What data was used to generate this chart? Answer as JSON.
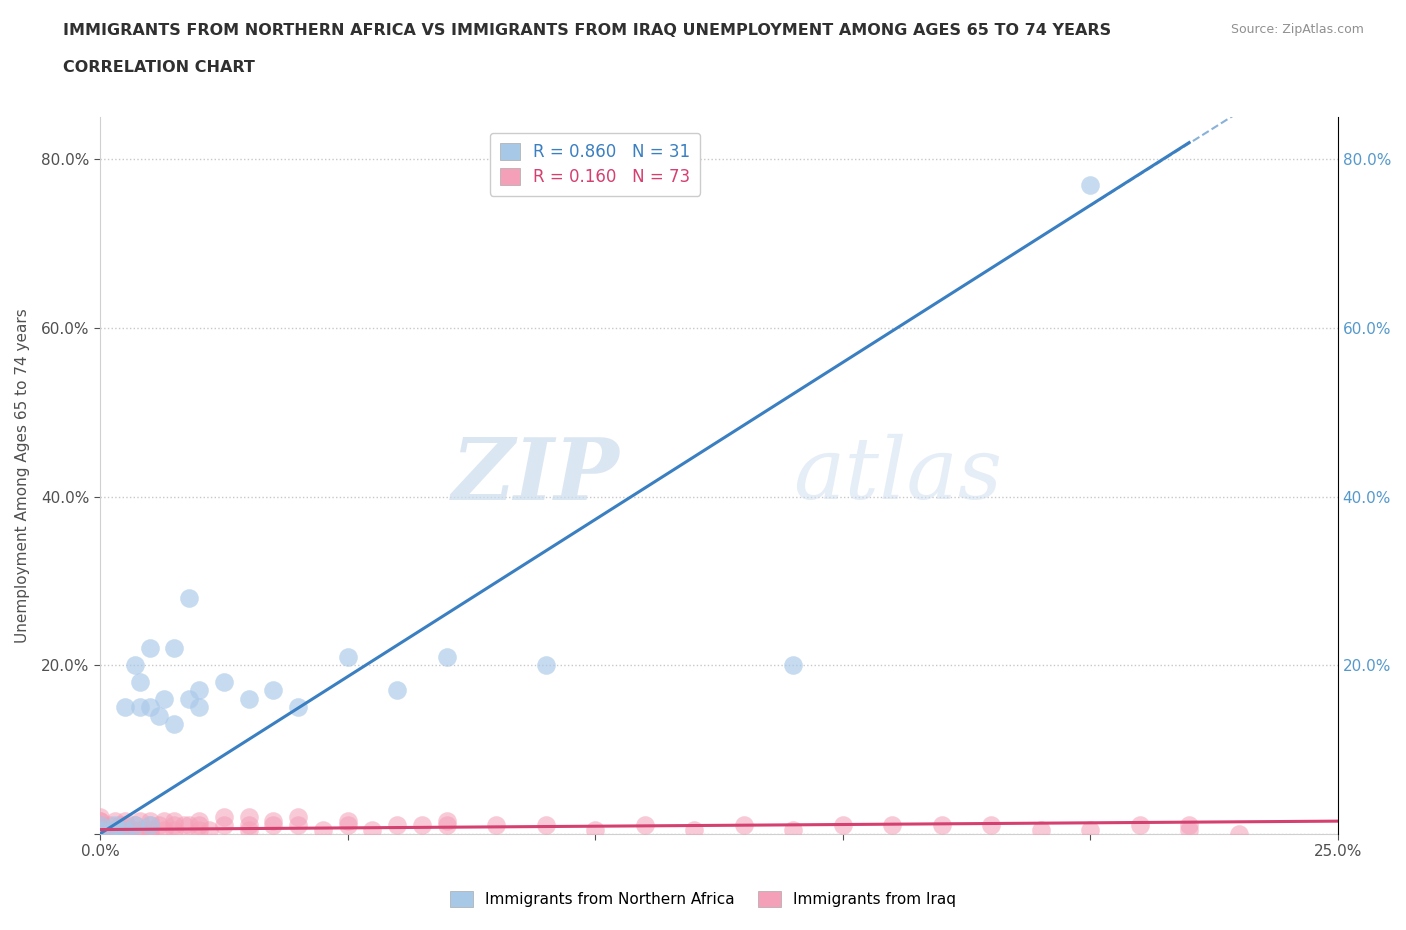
{
  "title_line1": "IMMIGRANTS FROM NORTHERN AFRICA VS IMMIGRANTS FROM IRAQ UNEMPLOYMENT AMONG AGES 65 TO 74 YEARS",
  "title_line2": "CORRELATION CHART",
  "source": "Source: ZipAtlas.com",
  "ylabel": "Unemployment Among Ages 65 to 74 years",
  "xlim": [
    0.0,
    0.25
  ],
  "ylim": [
    0.0,
    0.85
  ],
  "xticks": [
    0.0,
    0.05,
    0.1,
    0.15,
    0.2,
    0.25
  ],
  "yticks": [
    0.0,
    0.2,
    0.4,
    0.6,
    0.8
  ],
  "blue_R": 0.86,
  "blue_N": 31,
  "pink_R": 0.16,
  "pink_N": 73,
  "blue_color": "#a8c8e8",
  "pink_color": "#f4a0b8",
  "blue_line_color": "#3a7fc1",
  "pink_line_color": "#d44070",
  "watermark_zip": "ZIP",
  "watermark_atlas": "atlas",
  "blue_scatter_x": [
    0.0,
    0.0,
    0.003,
    0.003,
    0.005,
    0.005,
    0.007,
    0.007,
    0.008,
    0.008,
    0.01,
    0.01,
    0.01,
    0.012,
    0.013,
    0.015,
    0.015,
    0.018,
    0.018,
    0.02,
    0.02,
    0.025,
    0.03,
    0.035,
    0.04,
    0.05,
    0.06,
    0.07,
    0.09,
    0.14,
    0.2
  ],
  "blue_scatter_y": [
    0.005,
    0.01,
    0.005,
    0.01,
    0.005,
    0.15,
    0.01,
    0.2,
    0.15,
    0.18,
    0.01,
    0.15,
    0.22,
    0.14,
    0.16,
    0.13,
    0.22,
    0.16,
    0.28,
    0.17,
    0.15,
    0.18,
    0.16,
    0.17,
    0.15,
    0.21,
    0.17,
    0.21,
    0.2,
    0.2,
    0.77
  ],
  "pink_scatter_x": [
    0.0,
    0.0,
    0.0,
    0.0,
    0.0,
    0.0,
    0.0,
    0.0,
    0.0,
    0.0,
    0.002,
    0.002,
    0.003,
    0.003,
    0.004,
    0.005,
    0.005,
    0.005,
    0.005,
    0.007,
    0.007,
    0.008,
    0.008,
    0.01,
    0.01,
    0.01,
    0.01,
    0.012,
    0.013,
    0.013,
    0.015,
    0.015,
    0.015,
    0.017,
    0.018,
    0.02,
    0.02,
    0.02,
    0.022,
    0.025,
    0.025,
    0.03,
    0.03,
    0.03,
    0.035,
    0.035,
    0.04,
    0.04,
    0.045,
    0.05,
    0.05,
    0.055,
    0.06,
    0.065,
    0.07,
    0.07,
    0.08,
    0.09,
    0.1,
    0.11,
    0.12,
    0.13,
    0.14,
    0.15,
    0.16,
    0.17,
    0.18,
    0.19,
    0.2,
    0.21,
    0.22,
    0.22,
    0.23
  ],
  "pink_scatter_y": [
    0.0,
    0.0,
    0.01,
    0.015,
    0.005,
    0.01,
    0.005,
    0.015,
    0.02,
    0.005,
    0.005,
    0.01,
    0.005,
    0.015,
    0.01,
    0.0,
    0.005,
    0.01,
    0.015,
    0.005,
    0.01,
    0.005,
    0.015,
    0.0,
    0.005,
    0.01,
    0.015,
    0.01,
    0.005,
    0.015,
    0.005,
    0.01,
    0.015,
    0.01,
    0.01,
    0.005,
    0.01,
    0.015,
    0.005,
    0.01,
    0.02,
    0.005,
    0.01,
    0.02,
    0.01,
    0.015,
    0.01,
    0.02,
    0.005,
    0.01,
    0.015,
    0.005,
    0.01,
    0.01,
    0.01,
    0.015,
    0.01,
    0.01,
    0.005,
    0.01,
    0.005,
    0.01,
    0.005,
    0.01,
    0.01,
    0.01,
    0.01,
    0.005,
    0.005,
    0.01,
    0.01,
    0.005,
    0.0
  ],
  "blue_trend_x": [
    0.0,
    0.22
  ],
  "blue_trend_y": [
    0.0,
    0.82
  ],
  "pink_trend_x": [
    0.0,
    0.25
  ],
  "pink_trend_y": [
    0.005,
    0.015
  ]
}
